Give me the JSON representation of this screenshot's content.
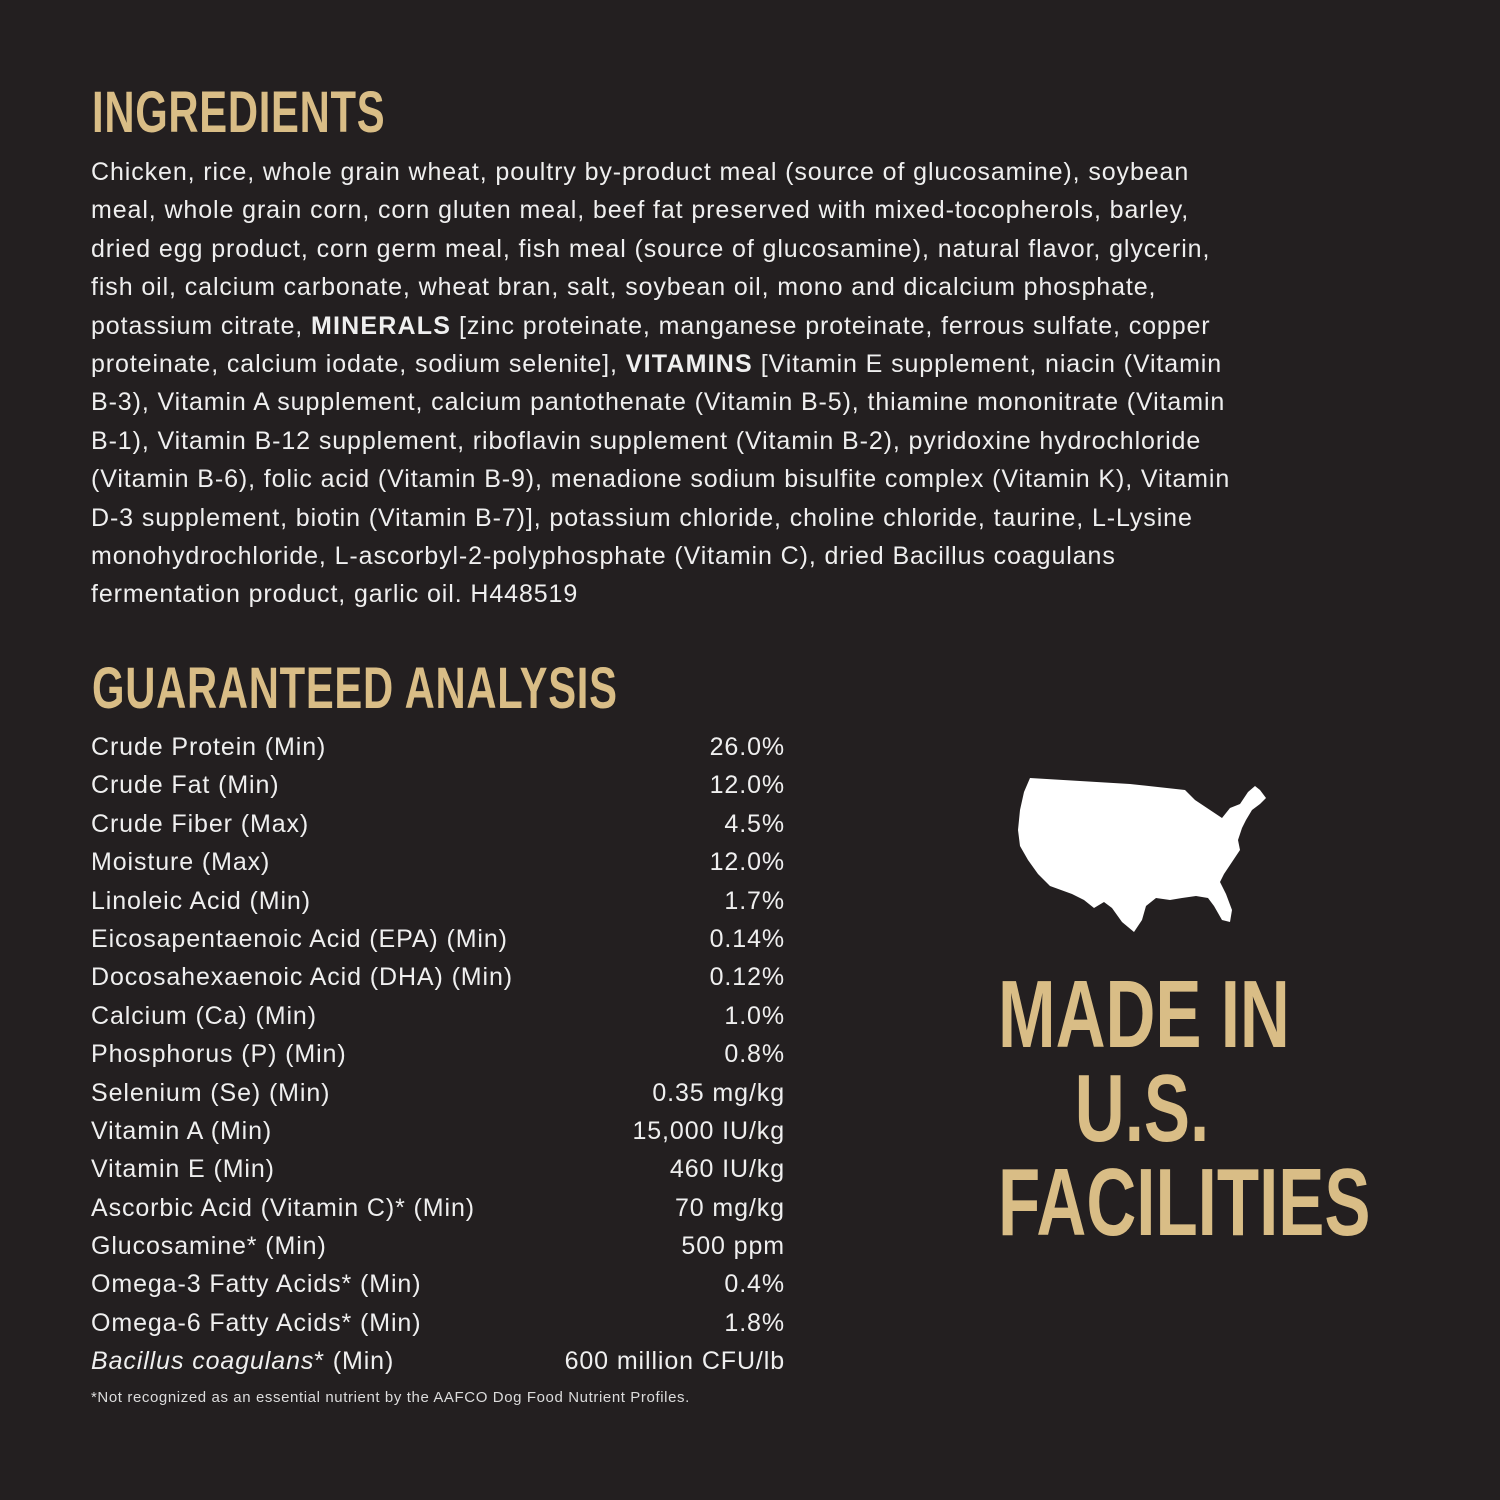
{
  "ingredients": {
    "title": "INGREDIENTS",
    "lines": [
      [
        {
          "t": "Chicken, rice, whole grain wheat, poultry by-product meal (source of glucosamine), soybean"
        }
      ],
      [
        {
          "t": "meal, whole grain corn, corn gluten meal, beef fat preserved with mixed-tocopherols, barley,"
        }
      ],
      [
        {
          "t": "dried egg product, corn germ meal, fish meal (source of glucosamine), natural flavor, glycerin,"
        }
      ],
      [
        {
          "t": "fish oil, calcium carbonate, wheat bran, salt, soybean oil, mono and dicalcium phosphate,"
        }
      ],
      [
        {
          "t": "potassium citrate, "
        },
        {
          "t": "MINERALS",
          "b": true
        },
        {
          "t": " [zinc proteinate, manganese proteinate, ferrous sulfate, copper"
        }
      ],
      [
        {
          "t": "proteinate, calcium iodate, sodium selenite], "
        },
        {
          "t": "VITAMINS",
          "b": true
        },
        {
          "t": " [Vitamin E supplement, niacin (Vitamin"
        }
      ],
      [
        {
          "t": "B-3), Vitamin A supplement, calcium pantothenate (Vitamin B-5), thiamine mononitrate (Vitamin"
        }
      ],
      [
        {
          "t": "B-1), Vitamin B-12 supplement, riboflavin supplement (Vitamin B-2), pyridoxine hydrochloride"
        }
      ],
      [
        {
          "t": "(Vitamin B-6), folic acid (Vitamin B-9), menadione sodium bisulfite complex (Vitamin K), Vitamin"
        }
      ],
      [
        {
          "t": "D-3 supplement, biotin (Vitamin B-7)], potassium chloride, choline chloride, taurine, L-Lysine"
        }
      ],
      [
        {
          "t": "monohydrochloride, L-ascorbyl-2-polyphosphate (Vitamin C), dried Bacillus coagulans"
        }
      ],
      [
        {
          "t": "fermentation product, garlic oil. H448519"
        }
      ]
    ]
  },
  "analysis": {
    "title": "GUARANTEED ANALYSIS",
    "rows": [
      {
        "label": "Crude Protein (Min)",
        "value": "26.0%"
      },
      {
        "label": "Crude Fat (Min)",
        "value": "12.0%"
      },
      {
        "label": "Crude Fiber (Max)",
        "value": "4.5%"
      },
      {
        "label": "Moisture (Max)",
        "value": "12.0%"
      },
      {
        "label": "Linoleic Acid (Min)",
        "value": "1.7%"
      },
      {
        "label": "Eicosapentaenoic Acid (EPA) (Min)",
        "value": "0.14%"
      },
      {
        "label": "Docosahexaenoic Acid (DHA) (Min)",
        "value": "0.12%"
      },
      {
        "label": "Calcium (Ca) (Min)",
        "value": "1.0%"
      },
      {
        "label": "Phosphorus (P) (Min)",
        "value": "0.8%"
      },
      {
        "label": "Selenium (Se) (Min)",
        "value": "0.35 mg/kg"
      },
      {
        "label": "Vitamin A (Min)",
        "value": "15,000 IU/kg"
      },
      {
        "label": "Vitamin E (Min)",
        "value": "460 IU/kg"
      },
      {
        "label": "Ascorbic Acid (Vitamin C)* (Min)",
        "value": "70 mg/kg"
      },
      {
        "label": "Glucosamine* (Min)",
        "value": "500 ppm"
      },
      {
        "label": "Omega-3 Fatty Acids* (Min)",
        "value": "0.4%"
      },
      {
        "label": "Omega-6 Fatty Acids* (Min)",
        "value": "1.8%"
      },
      {
        "label": "Bacillus coagulans",
        "italic": true,
        "suffix": "* (Min)",
        "value": "600 million CFU/lb"
      }
    ],
    "footnote": "*Not recognized as an essential nutrient by the AAFCO Dog Food Nutrient Profiles."
  },
  "badge": {
    "icon": "usa-map-icon",
    "lines": [
      "MADE IN",
      "U.S.",
      "FACILITIES"
    ]
  },
  "colors": {
    "background": "#231f20",
    "accent": "#d9bd86",
    "text": "#efefef"
  }
}
